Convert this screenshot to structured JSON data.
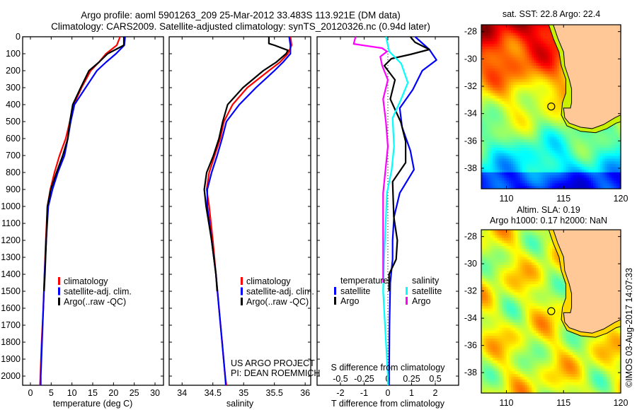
{
  "title": {
    "line1": "Argo profile: aoml 5901263_209 25-Mar-2012 33.483S 113.921E (DM data)",
    "line2": "Climatology: CARS2009. Satellite-adjusted climatology: synTS_20120326.nc (0.94d later)"
  },
  "credits": {
    "project": "US ARGO PROJECT",
    "pi": "PI: DEAN ROEMMICH",
    "imos": "©IMOS 03-Aug-2017 14:07:33"
  },
  "depth_ticks": [
    "0",
    "100",
    "200",
    "300",
    "400",
    "500",
    "600",
    "700",
    "800",
    "900",
    "1000",
    "1100",
    "1200",
    "1300",
    "1400",
    "1500",
    "1600",
    "1700",
    "1800",
    "1900",
    "2000"
  ],
  "chart_data": [
    {
      "type": "line",
      "panel": "temperature",
      "xlabel": "temperature (deg C)",
      "ylabel": "depth",
      "xlim": [
        -1.87,
        32.04
      ],
      "ylim": [
        0,
        2054
      ],
      "xticks": [
        0,
        5,
        10,
        15,
        20,
        25,
        30
      ],
      "xtick_labels": [
        "0",
        "5",
        "10",
        "15",
        "20",
        "25",
        "30"
      ],
      "legend": {
        "placement": "lower-middle",
        "entries": [
          {
            "label": "climatology",
            "color": "#ff0000"
          },
          {
            "label": "satellite-adj. clim.",
            "color": "#0000ff"
          },
          {
            "label": "Argo(..raw -QC)",
            "color": "#000000"
          }
        ]
      },
      "series": [
        {
          "name": "climatology",
          "color": "#ff0000",
          "depth": [
            0,
            50,
            100,
            150,
            200,
            300,
            400,
            500,
            600,
            700,
            800,
            900,
            1000,
            1200,
            1400,
            1600,
            1800,
            2000,
            2054
          ],
          "x": [
            21.6,
            20.8,
            18.2,
            16.5,
            14.5,
            12.3,
            10.4,
            9.5,
            8.5,
            7.0,
            5.8,
            4.8,
            4.1,
            3.7,
            3.4,
            3.1,
            2.7,
            2.4,
            2.3
          ]
        },
        {
          "name": "satellite-adj. clim.",
          "color": "#0000ff",
          "depth": [
            0,
            50,
            100,
            150,
            200,
            300,
            400,
            500,
            600,
            700,
            800,
            900,
            1000,
            1200,
            1400,
            1600,
            1800,
            2000,
            2054
          ],
          "x": [
            22.8,
            22.6,
            20.6,
            18.2,
            16.0,
            13.3,
            10.6,
            9.7,
            9.0,
            8.2,
            6.6,
            5.3,
            4.3,
            3.8,
            3.4,
            3.1,
            2.8,
            2.5,
            2.5
          ]
        },
        {
          "name": "Argo(..raw -QC)",
          "color": "#000000",
          "depth": [
            0,
            50,
            100,
            150,
            200,
            300,
            400,
            500,
            600,
            700,
            800,
            900,
            1000,
            1200,
            1400,
            1500
          ],
          "x": [
            22.5,
            22.5,
            18.6,
            16.5,
            14.1,
            12.1,
            10.2,
            9.5,
            9.0,
            7.8,
            6.3,
            4.9,
            4.1,
            3.8,
            3.5,
            3.3
          ]
        }
      ]
    },
    {
      "type": "line",
      "panel": "salinity",
      "xlabel": "salinity",
      "xlim": [
        33.79,
        36.09
      ],
      "ylim": [
        0,
        2054
      ],
      "xticks": [
        34,
        34.5,
        35,
        35.5,
        36
      ],
      "xtick_labels": [
        "34",
        "34.5",
        "35",
        "35.5",
        "36"
      ],
      "legend": {
        "placement": "lower-right",
        "entries": [
          {
            "label": "climatology",
            "color": "#ff0000"
          },
          {
            "label": "satellite-adj. clim.",
            "color": "#0000ff"
          },
          {
            "label": "Argo(..raw -QC)",
            "color": "#000000"
          }
        ]
      },
      "series": [
        {
          "name": "climatology",
          "color": "#ff0000",
          "depth": [
            0,
            50,
            100,
            150,
            200,
            300,
            400,
            500,
            600,
            700,
            800,
            900,
            1000,
            1200,
            1400,
            1600,
            1800,
            2000,
            2054
          ],
          "x": [
            35.76,
            35.78,
            35.72,
            35.59,
            35.41,
            35.06,
            34.82,
            34.68,
            34.62,
            34.53,
            34.44,
            34.4,
            34.44,
            34.5,
            34.55,
            34.6,
            34.65,
            34.7,
            34.72
          ]
        },
        {
          "name": "satellite-adj. clim.",
          "color": "#0000ff",
          "depth": [
            0,
            50,
            100,
            150,
            200,
            300,
            400,
            500,
            600,
            700,
            800,
            900,
            1000,
            1200,
            1400,
            1600,
            1800,
            2000,
            2054
          ],
          "x": [
            35.74,
            35.76,
            35.76,
            35.64,
            35.5,
            35.2,
            34.93,
            34.72,
            34.65,
            34.57,
            34.48,
            34.41,
            34.41,
            34.48,
            34.55,
            34.6,
            34.65,
            34.7,
            34.71
          ]
        },
        {
          "name": "Argo(..raw -QC)",
          "color": "#000000",
          "depth": [
            0,
            40,
            50,
            80,
            100,
            150,
            200,
            300,
            400,
            500,
            600,
            700,
            800,
            900,
            1000,
            1200,
            1400,
            1500
          ],
          "x": [
            35.41,
            35.41,
            35.5,
            35.72,
            35.69,
            35.53,
            35.32,
            34.99,
            34.74,
            34.66,
            34.6,
            34.51,
            34.4,
            34.36,
            34.39,
            34.48,
            34.55,
            34.57
          ]
        }
      ]
    },
    {
      "type": "line",
      "panel": "difference",
      "xlabel": "T difference from climatology",
      "x2label": "S difference from climatology",
      "xlim": [
        -2.985,
        2.985
      ],
      "x2lim": [
        -0.746,
        0.746
      ],
      "ylim": [
        0,
        2054
      ],
      "xticks": [
        -2,
        -1,
        0,
        1,
        2
      ],
      "xtick_labels": [
        "-2",
        "-1",
        "0",
        "1",
        "2"
      ],
      "x2ticks": [
        -0.5,
        -0.25,
        0,
        0.25,
        0.5
      ],
      "x2tick_labels": [
        "-0.5",
        "-0.25",
        "0",
        "0.25",
        "0.5"
      ],
      "legend": {
        "placement": "lower-middle",
        "temperature_heading": "temperature",
        "salinity_heading": "salinity",
        "entries": [
          {
            "label": "satellite",
            "color": "#0000ff",
            "group": "temperature"
          },
          {
            "label": "Argo",
            "color": "#000000",
            "group": "temperature"
          },
          {
            "label": "satellite",
            "color": "#00ffff",
            "group": "salinity"
          },
          {
            "label": "Argo",
            "color": "#ff00ff",
            "group": "salinity"
          }
        ]
      },
      "series": [
        {
          "name": "T satellite",
          "color": "#0000ff",
          "axis": "T",
          "depth": [
            0,
            75,
            137,
            200,
            312,
            421,
            533,
            671,
            783,
            921,
            1062,
            1200,
            1312,
            1450,
            1700,
            2000,
            2054
          ],
          "x": [
            1.15,
            1.75,
            2.05,
            1.45,
            1.05,
            0.5,
            0.6,
            0.95,
            1.1,
            0.5,
            0.26,
            0.2,
            0.2,
            0.1,
            0.07,
            0.05,
            0.05
          ]
        },
        {
          "name": "T Argo",
          "color": "#000000",
          "axis": "T",
          "depth": [
            0,
            33,
            75,
            104,
            129,
            171,
            254,
            367,
            504,
            617,
            742,
            854,
            1062,
            1200,
            1312,
            1400,
            1500
          ],
          "x": [
            0.95,
            1.15,
            1.75,
            0.95,
            0.15,
            -0.15,
            0.3,
            0.1,
            0.55,
            0.75,
            0.75,
            0.2,
            0.25,
            0.4,
            0.35,
            0.05,
            0.05
          ]
        },
        {
          "name": "S satellite",
          "color": "#00ffff",
          "axis": "S",
          "depth": [
            0,
            87,
            158,
            271,
            367,
            479,
            646,
            783,
            921,
            1312,
            1500,
            1800,
            2000,
            2054
          ],
          "x": [
            -0.02,
            0.015,
            0.14,
            0.21,
            0.14,
            0.05,
            0.065,
            0.04,
            -0.01,
            -0.04,
            -0.05,
            -0.02,
            0,
            0
          ]
        },
        {
          "name": "S Argo",
          "color": "#ff00ff",
          "axis": "S",
          "depth": [
            0,
            42,
            67,
            87,
            117,
            171,
            254,
            367,
            504,
            646,
            921,
            1312,
            1450
          ],
          "x": [
            -0.34,
            -0.36,
            -0.06,
            -0.01,
            -0.08,
            -0.06,
            0,
            -0.05,
            -0.02,
            0,
            -0.05,
            -0.05,
            -0.05
          ]
        }
      ]
    },
    {
      "type": "heatmap",
      "panel": "sst-map",
      "title": "sat. SST: 22.8 Argo: 22.4",
      "lon_range": [
        107.8,
        120
      ],
      "lat_range": [
        -39.5,
        -27.5
      ],
      "xticks": [
        110,
        115,
        120
      ],
      "xtick_labels": [
        "110",
        "115",
        "120"
      ],
      "yticks": [
        -28,
        -30,
        -32,
        -34,
        -36,
        -38
      ],
      "ytick_labels": [
        "-28",
        "-30",
        "-32",
        "-34",
        "-36",
        "-38"
      ],
      "argo_position": {
        "lon": 113.921,
        "lat": -33.483
      },
      "land_color": "#ffc896"
    },
    {
      "type": "heatmap",
      "panel": "sla-map",
      "title": "Altim. SLA: 0.19",
      "subtitle": "Argo h1000: 0.17 h2000: NaN",
      "lon_range": [
        107.8,
        120
      ],
      "lat_range": [
        -39.5,
        -27.5
      ],
      "xticks": [
        110,
        115,
        120
      ],
      "xtick_labels": [
        "110",
        "115",
        "120"
      ],
      "yticks": [
        -28,
        -30,
        -32,
        -34,
        -36,
        -38
      ],
      "ytick_labels": [
        "-28",
        "-30",
        "-32",
        "-34",
        "-36",
        "-38"
      ],
      "argo_position": {
        "lon": 113.921,
        "lat": -33.483
      },
      "land_color": "#ffc896"
    }
  ]
}
